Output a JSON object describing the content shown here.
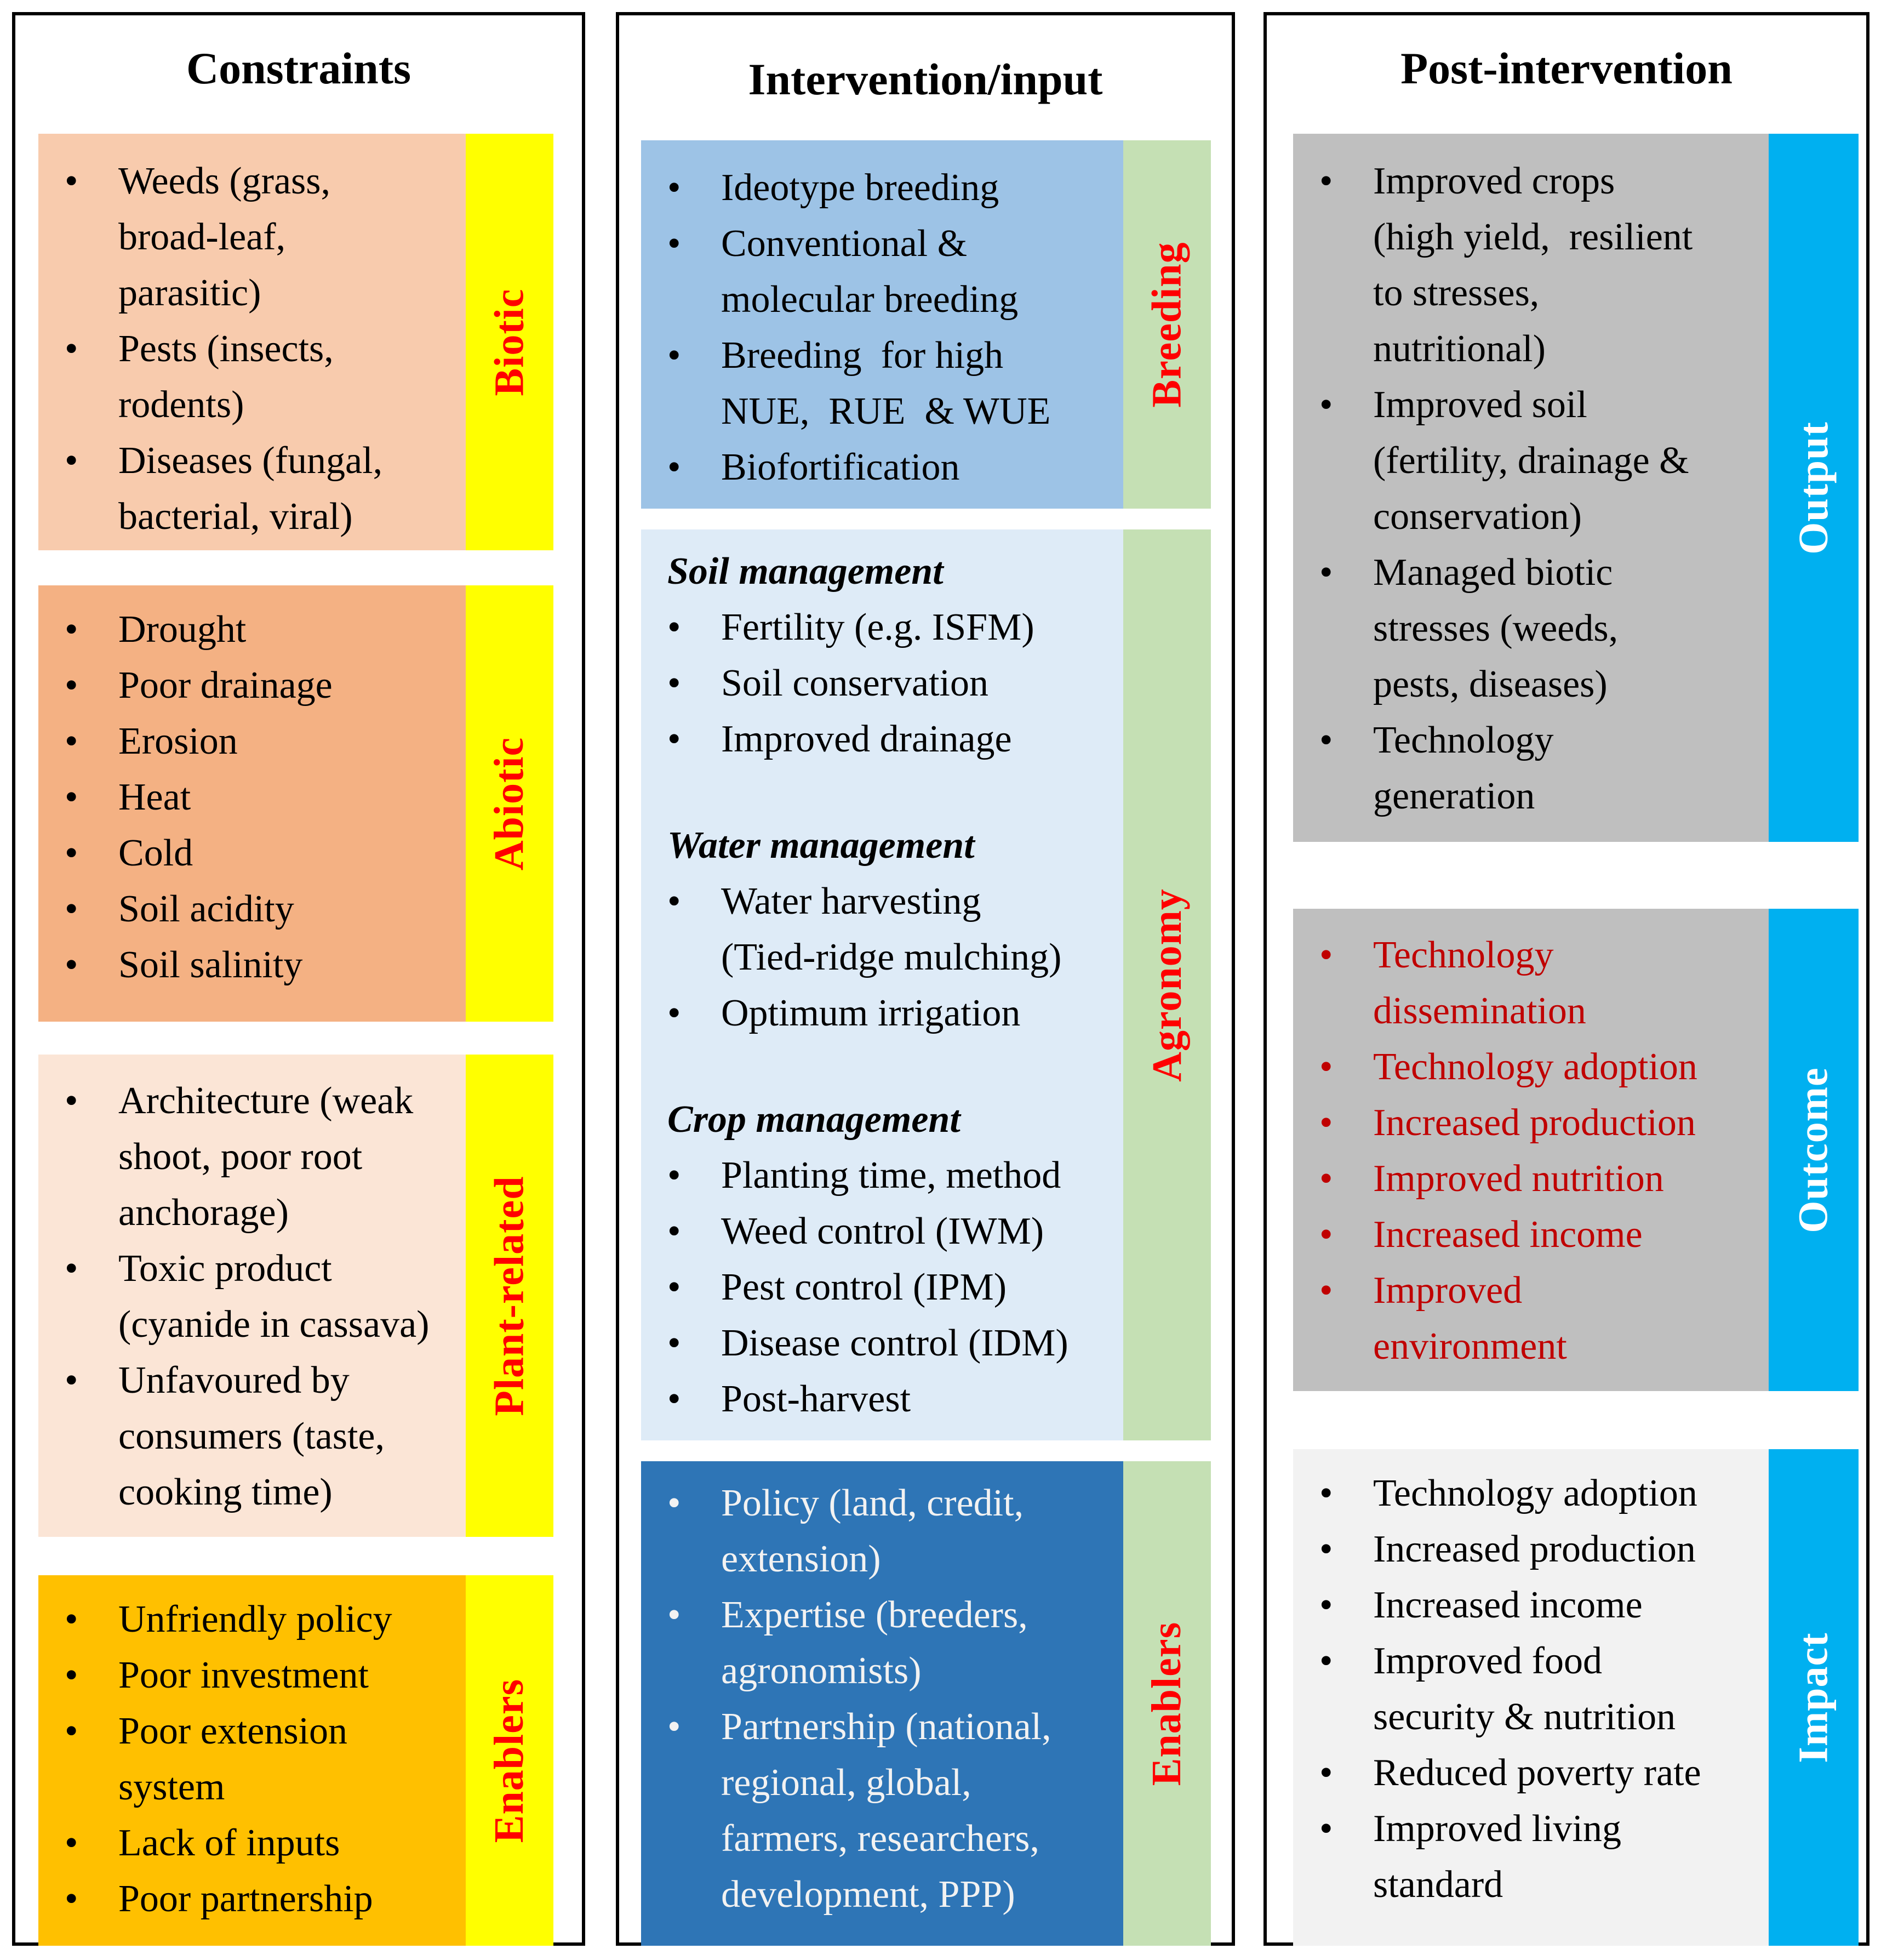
{
  "constraints": {
    "title": "Constraints",
    "biotic": {
      "label": "Biotic",
      "items": [
        [
          "Weeds (grass,",
          "broad-leaf,",
          "parasitic)"
        ],
        [
          "Pests (insects,",
          "rodents)"
        ],
        [
          "Diseases (fungal,",
          "bacterial, viral)"
        ]
      ]
    },
    "abiotic": {
      "label": "Abiotic",
      "items": [
        [
          "Drought"
        ],
        [
          "Poor drainage"
        ],
        [
          "Erosion"
        ],
        [
          "Heat"
        ],
        [
          "Cold"
        ],
        [
          "Soil acidity"
        ],
        [
          "Soil salinity"
        ]
      ]
    },
    "plant": {
      "label": "Plant-related",
      "items": [
        [
          "Architecture (weak",
          "shoot, poor root",
          "anchorage)"
        ],
        [
          "Toxic product",
          "(cyanide in cassava)"
        ],
        [
          "Unfavoured by",
          "consumers (taste,",
          "cooking time)"
        ]
      ]
    },
    "enablers": {
      "label": "Enablers",
      "items": [
        [
          "Unfriendly policy"
        ],
        [
          "Poor investment"
        ],
        [
          "Poor extension",
          "system"
        ],
        [
          "Lack of inputs"
        ],
        [
          "Poor partnership"
        ]
      ]
    }
  },
  "intervention": {
    "title": "Intervention/input",
    "breeding": {
      "label": "Breeding",
      "items": [
        [
          "Ideotype breeding"
        ],
        [
          "Conventional &",
          "molecular breeding"
        ],
        [
          "Breeding  for high",
          "NUE,  RUE  & WUE"
        ],
        [
          "Biofortification"
        ]
      ]
    },
    "agronomy": {
      "label": "Agronomy",
      "groups": [
        {
          "title": "Soil management",
          "items": [
            [
              "Fertility (e.g. ISFM)"
            ],
            [
              "Soil conservation"
            ],
            [
              "Improved drainage"
            ]
          ]
        },
        {
          "title": "Water management",
          "items": [
            [
              "Water harvesting",
              "(Tied-ridge mulching)"
            ],
            [
              "Optimum irrigation"
            ]
          ]
        },
        {
          "title": "Crop management",
          "items": [
            [
              "Planting time, method"
            ],
            [
              "Weed control (IWM)"
            ],
            [
              "Pest control (IPM)"
            ],
            [
              "Disease control (IDM)"
            ],
            [
              "Post-harvest"
            ]
          ]
        }
      ]
    },
    "enablers": {
      "label": "Enablers",
      "items": [
        [
          "Policy (land, credit,",
          "extension)"
        ],
        [
          "Expertise (breeders,",
          "agronomists)"
        ],
        [
          "Partnership (national,",
          "regional, global,",
          "farmers, researchers,",
          "development, PPP)"
        ]
      ]
    }
  },
  "post": {
    "title": "Post-intervention",
    "output": {
      "label": "Output",
      "items": [
        [
          "Improved crops",
          "(high yield,  resilient",
          "to stresses,",
          "nutritional)"
        ],
        [
          "Improved soil",
          "(fertility, drainage &",
          "conservation)"
        ],
        [
          "Managed biotic",
          "stresses (weeds,",
          "pests, diseases)"
        ],
        [
          "Technology",
          "generation"
        ]
      ]
    },
    "outcome": {
      "label": "Outcome",
      "items": [
        [
          "Technology",
          "dissemination"
        ],
        [
          "Technology adoption"
        ],
        [
          "Increased production"
        ],
        [
          "Improved nutrition"
        ],
        [
          "Increased income"
        ],
        [
          "Improved",
          "environment"
        ]
      ]
    },
    "impact": {
      "label": "Impact",
      "items": [
        [
          "Technology adoption"
        ],
        [
          "Increased production"
        ],
        [
          "Increased income"
        ],
        [
          "Improved food",
          "security & nutrition"
        ],
        [
          "Reduced poverty rate"
        ],
        [
          "Improved living",
          "standard"
        ]
      ]
    }
  },
  "colors": {
    "biotic": "#F8CBAD",
    "abiotic": "#F4B183",
    "plant": "#FBE5D6",
    "constraint_enablers": "#FFC000",
    "yellow_tab": "#FFFF00",
    "breeding": "#9DC3E6",
    "agronomy": "#DEEBF7",
    "intervention_enablers": "#2E75B6",
    "green_tab": "#C5E0B4",
    "output": "#BFBFBF",
    "outcome": "#BFBFBF",
    "impact": "#F2F2F2",
    "blue_tab": "#00B0F0",
    "red_label": "#FF0000",
    "red_text": "#C00000"
  }
}
